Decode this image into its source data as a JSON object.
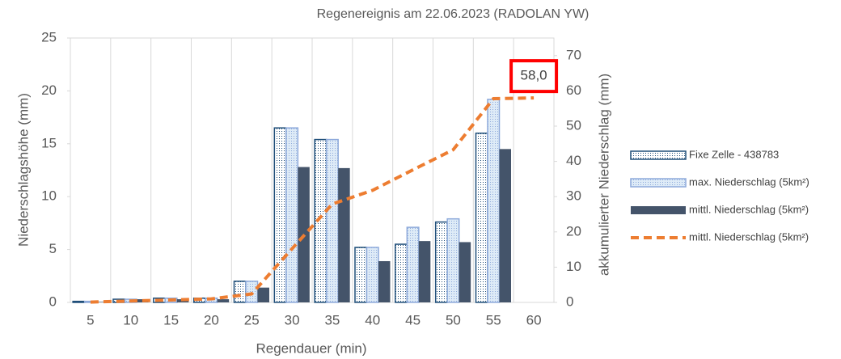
{
  "chart_data": {
    "type": "bar",
    "title": "Regenereignis am 22.06.2023 (RADOLAN YW)",
    "x_label": "Regendauer (min)",
    "y_label": "Niederschlagshöhe (mm)",
    "y2_label": "akkumulierter Niederschlag (mm)",
    "categories": [
      "5",
      "10",
      "15",
      "20",
      "25",
      "30",
      "35",
      "40",
      "45",
      "50",
      "55",
      "60"
    ],
    "ylim": [
      0,
      25
    ],
    "yticks": [
      0,
      5,
      10,
      15,
      20,
      25
    ],
    "y2lim": [
      0,
      75
    ],
    "y2ticks": [
      0,
      10,
      20,
      30,
      40,
      50,
      60,
      70
    ],
    "series": [
      {
        "name": "Fixe Zelle - 438783",
        "type": "bar",
        "fill": "dotted",
        "color": "#1f4e79",
        "background": "#ffffff",
        "values": [
          0.1,
          0.3,
          0.4,
          0.4,
          2.0,
          16.5,
          15.4,
          5.2,
          5.5,
          7.6,
          16.0,
          null
        ]
      },
      {
        "name": "max. Niederschlag (5km²)",
        "type": "bar",
        "fill": "dotted",
        "color": "#8eaadb",
        "background": "#deebf7",
        "values": [
          0.1,
          0.3,
          0.4,
          0.4,
          2.0,
          16.5,
          15.4,
          5.2,
          7.1,
          7.9,
          19.2,
          null
        ]
      },
      {
        "name": "mittl. Niederschlag (5km²)",
        "type": "bar",
        "fill": "solid",
        "color": "#44546a",
        "values": [
          0.05,
          0.3,
          0.3,
          0.3,
          1.4,
          12.8,
          12.7,
          3.9,
          5.8,
          5.7,
          14.5,
          null
        ]
      },
      {
        "name": "mittl. Niederschlag (5km²)",
        "type": "line",
        "axis": "y2",
        "color": "#ed7d31",
        "dashed": true,
        "values": [
          0.1,
          0.4,
          0.7,
          1.0,
          2.4,
          15.2,
          27.9,
          31.8,
          37.6,
          43.3,
          57.8,
          58.0
        ]
      }
    ],
    "annotations": [
      {
        "text": "58,0",
        "color": "#ff0000"
      }
    ]
  }
}
